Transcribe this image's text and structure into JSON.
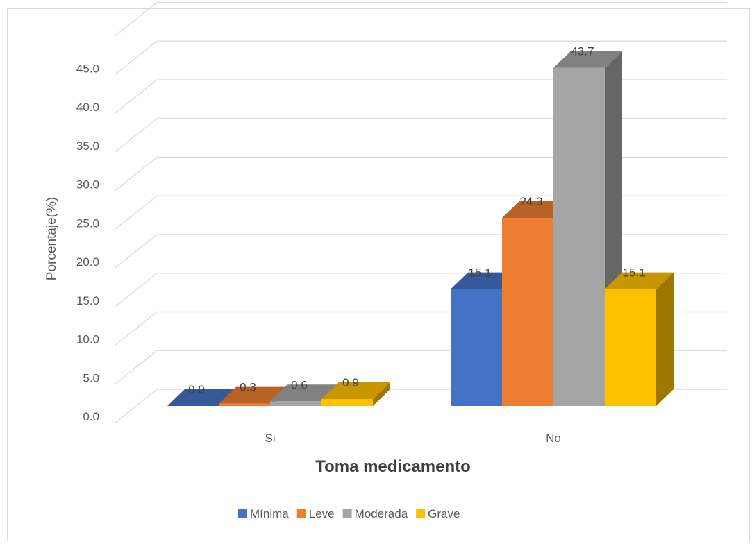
{
  "chart_data": {
    "type": "bar",
    "title": "",
    "xlabel": "Toma medicamento",
    "ylabel": "Porcentaje(%)",
    "categories": [
      "Si",
      "No"
    ],
    "ylim": [
      0,
      45
    ],
    "yticks": [
      "0.0",
      "5.0",
      "10.0",
      "15.0",
      "20.0",
      "25.0",
      "30.0",
      "35.0",
      "40.0",
      "45.0"
    ],
    "grid": true,
    "three_d": true,
    "legend_position": "bottom",
    "series": [
      {
        "name": "Mínima",
        "values": [
          0.0,
          15.1
        ],
        "color": "#4472C4"
      },
      {
        "name": "Leve",
        "values": [
          0.3,
          24.3
        ],
        "color": "#ED7D31"
      },
      {
        "name": "Moderada",
        "values": [
          0.6,
          43.7
        ],
        "color": "#A5A5A5"
      },
      {
        "name": "Grave",
        "values": [
          0.9,
          15.1
        ],
        "color": "#FFC000"
      }
    ]
  }
}
